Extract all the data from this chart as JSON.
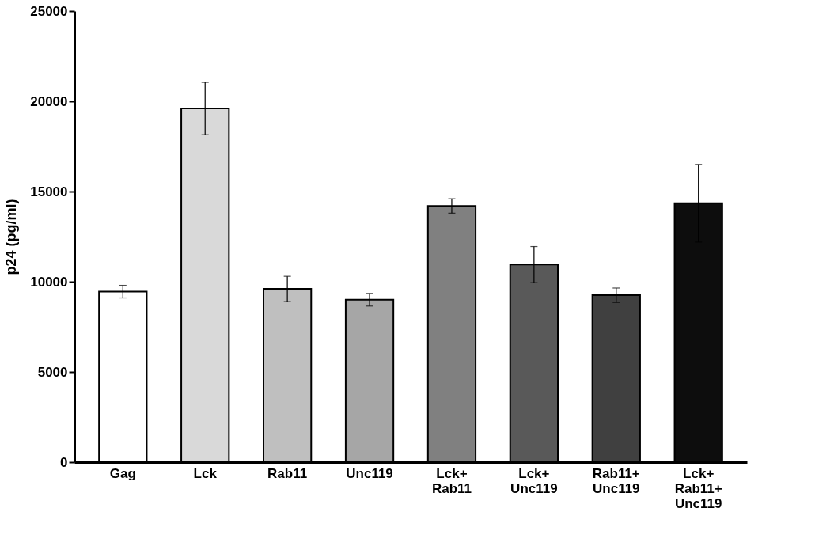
{
  "chart_data": {
    "type": "bar",
    "ylabel": "p24 (pg/ml)",
    "categories": [
      "Gag",
      "Lck",
      "Rab11",
      "Unc119",
      "Lck+\nRab11",
      "Lck+\nUnc119",
      "Rab11+\nUnc119",
      "Lck+\nRab11+\nUnc119"
    ],
    "values": [
      9450,
      19600,
      9600,
      9000,
      14200,
      10950,
      9250,
      14350
    ],
    "errors": [
      350,
      1450,
      700,
      350,
      400,
      1000,
      400,
      2150
    ],
    "colors": [
      "#ffffff",
      "#d9d9d9",
      "#bfbfbf",
      "#a6a6a6",
      "#808080",
      "#595959",
      "#404040",
      "#0d0d0d"
    ],
    "ylim": [
      0,
      25000
    ],
    "yticks": [
      0,
      5000,
      10000,
      15000,
      20000,
      25000
    ],
    "grid": false
  }
}
